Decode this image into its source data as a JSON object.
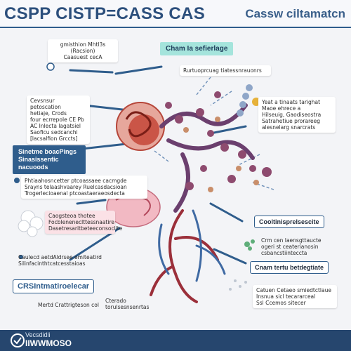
{
  "header": {
    "title_left": "CSPP CISTP=CASS CAS",
    "title_right": "Cassw ciltamatcn"
  },
  "labels": {
    "top_left_note": "gmisthion Mhtl3s\n(Racsion)\nCaasuest cecA",
    "teal_label_top": "Cham Ia sefierlage",
    "flow_note_top": "Rurtuoprcuag tiatessnrauonrs",
    "left_card": "Cevsnsur petoscation\nhetiaje, Crods\nfour ecrrepole CE Pb\nAC Inlecta lagatsiel\nSaoficu sedcanchi\n[lacsalfion Grccts]",
    "left_blue_pill": "Sinetme boacPings\nSinasissentic nacuoods",
    "right_card": "Yeat a tinaats tarighat\nMaoe ehrece a\nHilseuig, Gaodiseostra\nSatrahetiue prorareeg\nalesnelarg snarcrats",
    "mid_left_note": "Phtiaahosncetter ptcoassaee cacmgde\nSrayns telaashvaarey Ruelcasdacsioan\nTrogerlecioaenal ptcoastaeraeosdecta",
    "pink_card": "Caogsteoa thotee\nFocbleneneclttessnaatire\nDasetresaritbeteeconsocllte",
    "bottom_left_note": "Caulecd aetdAldrsee emiteatird\nSilinfacinthtcatcesstaioas",
    "crs_label": "CRSIntmatiroelecar",
    "bottom_note_1": "Mertd Crattrigteson col",
    "bottom_note_2": "Cterado\ntorulsesnsenrtas",
    "right_outline_pill": "Cooltinisprelsescite",
    "right_note_1": "Crm cen Iaensgttaucte\nogeri st ceaterianosin\ncsbancstiinteccta",
    "right_outline_pill_2": "Cnam tertu betdegtiate",
    "bottom_right_note": "Catuen Cetaeo smiedtctlaue\nInsnua sicl tecararceal\nSsl Ccemos sitecer"
  },
  "footer": {
    "line1": "Vecsdidli",
    "line2": "IIWWMOSO"
  },
  "colors": {
    "accent": "#2f5d8c",
    "teal": "#a5e4dc",
    "protein_red": "#c0392b",
    "protein_purple": "#6b3f6e"
  }
}
